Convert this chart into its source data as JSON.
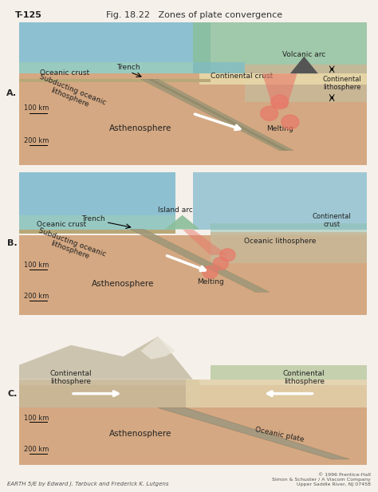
{
  "title": "Fig. 18.22   Zones of plate convergence",
  "title_id": "T-125",
  "bg_color": "#f5f0e8",
  "footer_left": "EARTH 5/E by Edward J. Tarbuck and Frederick K. Lutgens",
  "footer_right": "© 1996 Prentice-Hall\nSimon & Schuster / A Viacom Company\nUpper Saddle River, NJ 07458",
  "panel_A": {
    "label": "A.",
    "ocean_color": "#7bb8c8",
    "surface_water_color": "#a8d4e0",
    "crust_top_color": "#c8d8a0",
    "asthenosphere_color": "#d4a882",
    "lithosphere_color": "#c8b090",
    "subducting_color": "#b0a080",
    "continental_crust_color": "#e8d4a0",
    "depth_labels": [
      "100 km",
      "200 km"
    ],
    "labels": [
      "Trench",
      "Oceanic crust",
      "Subducting oceanic lithosphere",
      "Continental crust",
      "Volcanic arc",
      "Continental\nlithosphere",
      "Melting",
      "Asthenosphere"
    ]
  },
  "panel_B": {
    "label": "B.",
    "ocean_color": "#7bb8c8",
    "asthenosphere_color": "#d4a882",
    "depth_labels": [
      "100 km",
      "200 km"
    ],
    "labels": [
      "Trench",
      "Oceanic crust",
      "Island arc",
      "Subducting oceanic lithosphere",
      "Oceanic lithosphere",
      "Continental\ncrust",
      "Melting",
      "Asthenosphere"
    ]
  },
  "panel_C": {
    "label": "C.",
    "mountain_color": "#d0c8b8",
    "asthenosphere_color": "#d4a882",
    "depth_labels": [
      "100 km",
      "200 km"
    ],
    "labels": [
      "Continental\nlithosphere",
      "Continental\nlithosphere",
      "Oceanic plate",
      "Asthenosphere"
    ]
  }
}
